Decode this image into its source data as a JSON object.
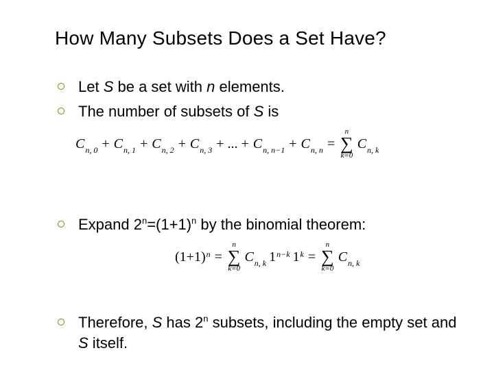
{
  "colors": {
    "background": "#ffffff",
    "text": "#000000",
    "bullet_ring": "#808000"
  },
  "fonts": {
    "body": "Verdana, Arial, sans-serif",
    "math": "Times New Roman, Times, serif",
    "title_size_pt": 28,
    "body_size_pt": 22,
    "math_size_pt": 20
  },
  "title": "How Many Subsets Does a Set Have?",
  "bullets": {
    "b1_pre": "Let ",
    "b1_S": "S",
    "b1_mid": " be a set with ",
    "b1_n": "n",
    "b1_post": " elements.",
    "b2_pre": "The number of subsets of ",
    "b2_S": "S",
    "b2_post": " is",
    "b3_pre": "Expand 2",
    "b3_sup1": "n",
    "b3_mid": "=(1+1)",
    "b3_sup2": "n",
    "b3_post": " by the binomial theorem:",
    "b4_pre": "Therefore, ",
    "b4_S": "S",
    "b4_mid": " has 2",
    "b4_sup": "n",
    "b4_post1": " subsets, including the empty set and ",
    "b4_S2": "S",
    "b4_post2": " itself."
  },
  "formula1": {
    "c": "C",
    "subs": [
      "n, 0",
      "n, 1",
      "n, 2",
      "n, 3",
      "n, n−1",
      "n, n",
      "n, k"
    ],
    "plus": "+",
    "dots": "+ ... +",
    "eq": "=",
    "sigma": "∑",
    "sigma_top": "n",
    "sigma_bot": "k=0"
  },
  "formula2": {
    "lhs_base": "(1+1)",
    "lhs_sup": "n",
    "eq": "=",
    "sigma": "∑",
    "sigma_top": "n",
    "sigma_bot": "k=0",
    "c": "C",
    "sub_nk": "n, k",
    "one": "1",
    "exp1": "n−k",
    "exp2": "k"
  }
}
